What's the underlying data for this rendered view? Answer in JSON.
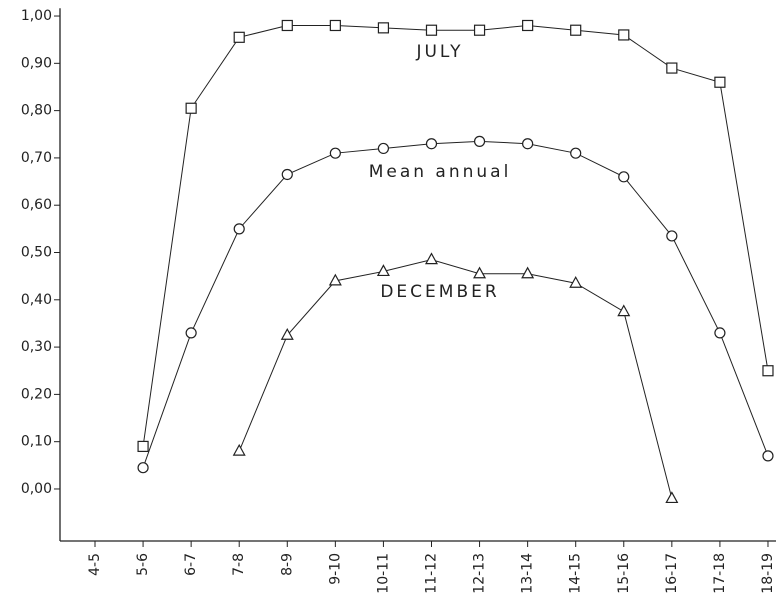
{
  "chart_data": {
    "type": "line",
    "categories": [
      "4-5",
      "5-6",
      "6-7",
      "7-8",
      "8-9",
      "9-10",
      "10-11",
      "11-12",
      "12-13",
      "13-14",
      "14-15",
      "15-16",
      "16-17",
      "17-18",
      "18-19"
    ],
    "series": [
      {
        "name": "JULY",
        "color": "#222222",
        "marker": "square",
        "values": [
          null,
          0.09,
          0.805,
          0.955,
          0.98,
          0.98,
          0.975,
          0.97,
          0.97,
          0.98,
          0.97,
          0.96,
          0.89,
          0.86,
          0.25
        ]
      },
      {
        "name": "Mean annual",
        "color": "#222222",
        "marker": "circle",
        "values": [
          null,
          0.045,
          0.33,
          0.55,
          0.665,
          0.71,
          0.72,
          0.73,
          0.735,
          0.73,
          0.71,
          0.66,
          0.535,
          0.33,
          0.07
        ]
      },
      {
        "name": "DECEMBER",
        "color": "#222222",
        "marker": "triangle",
        "values": [
          null,
          null,
          null,
          0.08,
          0.325,
          0.44,
          0.46,
          0.485,
          0.455,
          0.455,
          0.435,
          0.375,
          -0.02,
          null,
          null
        ]
      }
    ],
    "ylim": [
      -0.11,
      1.01
    ],
    "yticks": [
      {
        "value": 1.0,
        "label": "1,00"
      },
      {
        "value": 0.9,
        "label": "0,90"
      },
      {
        "value": 0.8,
        "label": "0,80"
      },
      {
        "value": 0.7,
        "label": "0,70"
      },
      {
        "value": 0.6,
        "label": "0,60"
      },
      {
        "value": 0.5,
        "label": "0,50"
      },
      {
        "value": 0.4,
        "label": "0,40"
      },
      {
        "value": 0.3,
        "label": "0,30"
      },
      {
        "value": 0.2,
        "label": "0,20"
      },
      {
        "value": 0.1,
        "label": "0,10"
      },
      {
        "value": 0.0,
        "label": "0,00"
      }
    ],
    "grid": false
  }
}
